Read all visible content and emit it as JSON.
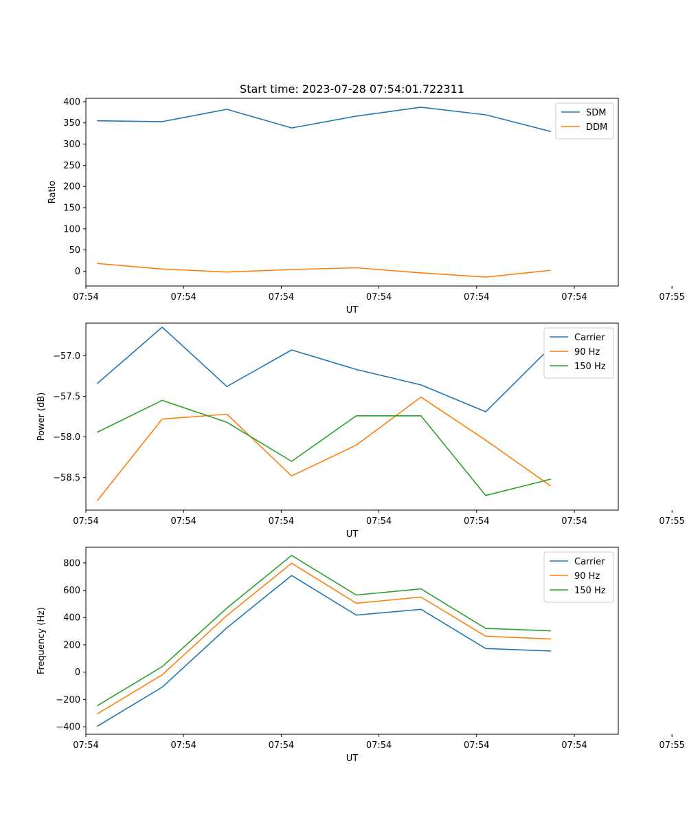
{
  "chart_data": [
    {
      "type": "line",
      "title": "Start time: 2023-07-28 07:54:01.722311",
      "xlabel": "UT",
      "ylabel": "Ratio",
      "x": [
        1,
        2,
        3,
        4,
        5,
        6,
        7,
        8
      ],
      "xlim": [
        0.82,
        9.05
      ],
      "xticks": [
        {
          "v": 0.82,
          "label": "07:54"
        },
        {
          "v": 2.33,
          "label": "07:54"
        },
        {
          "v": 3.84,
          "label": "07:54"
        },
        {
          "v": 5.35,
          "label": "07:54"
        },
        {
          "v": 6.86,
          "label": "07:54"
        },
        {
          "v": 8.37,
          "label": "07:54"
        },
        {
          "v": 9.88,
          "label": "07:55"
        }
      ],
      "ylim": [
        -35,
        408
      ],
      "yticks": [
        0,
        50,
        100,
        150,
        200,
        250,
        300,
        350,
        400
      ],
      "grid": false,
      "legend_position": "top-right",
      "series": [
        {
          "name": "SDM",
          "color": "#1f77b4",
          "values": [
            355,
            353,
            382,
            338,
            366,
            387,
            369,
            330
          ]
        },
        {
          "name": "DDM",
          "color": "#ff7f0e",
          "values": [
            18,
            5,
            -2,
            4,
            8,
            -4,
            -14,
            2
          ]
        }
      ]
    },
    {
      "type": "line",
      "title": "",
      "xlabel": "UT",
      "ylabel": "Power (dB)",
      "x": [
        1,
        2,
        3,
        4,
        5,
        6,
        7,
        8
      ],
      "xlim": [
        0.82,
        9.05
      ],
      "xticks": [
        {
          "v": 0.82,
          "label": "07:54"
        },
        {
          "v": 2.33,
          "label": "07:54"
        },
        {
          "v": 3.84,
          "label": "07:54"
        },
        {
          "v": 5.35,
          "label": "07:54"
        },
        {
          "v": 6.86,
          "label": "07:54"
        },
        {
          "v": 8.37,
          "label": "07:54"
        },
        {
          "v": 9.88,
          "label": "07:55"
        }
      ],
      "ylim": [
        -58.9,
        -56.6
      ],
      "yticks": [
        {
          "v": -57.0,
          "label": "−57.0"
        },
        {
          "v": -57.5,
          "label": "−57.5"
        },
        {
          "v": -58.0,
          "label": "−58.0"
        },
        {
          "v": -58.5,
          "label": "−58.5"
        }
      ],
      "grid": false,
      "legend_position": "top-right",
      "series": [
        {
          "name": "Carrier",
          "color": "#1f77b4",
          "values": [
            -57.34,
            -56.65,
            -57.38,
            -56.93,
            -57.17,
            -57.36,
            -57.69,
            -56.9
          ]
        },
        {
          "name": "90 Hz",
          "color": "#ff7f0e",
          "values": [
            -58.78,
            -57.78,
            -57.72,
            -58.48,
            -58.1,
            -57.51,
            -58.04,
            -58.6
          ]
        },
        {
          "name": "150 Hz",
          "color": "#2ca02c",
          "values": [
            -57.94,
            -57.55,
            -57.82,
            -58.3,
            -57.74,
            -57.74,
            -58.72,
            -58.52
          ]
        }
      ]
    },
    {
      "type": "line",
      "title": "",
      "xlabel": "UT",
      "ylabel": "Frequency (Hz)",
      "x": [
        1,
        2,
        3,
        4,
        5,
        6,
        7,
        8
      ],
      "xlim": [
        0.82,
        9.05
      ],
      "xticks": [
        {
          "v": 0.82,
          "label": "07:54"
        },
        {
          "v": 2.33,
          "label": "07:54"
        },
        {
          "v": 3.84,
          "label": "07:54"
        },
        {
          "v": 5.35,
          "label": "07:54"
        },
        {
          "v": 6.86,
          "label": "07:54"
        },
        {
          "v": 8.37,
          "label": "07:54"
        },
        {
          "v": 9.88,
          "label": "07:55"
        }
      ],
      "ylim": [
        -455,
        915
      ],
      "yticks": [
        {
          "v": -400,
          "label": "−400"
        },
        {
          "v": -200,
          "label": "−200"
        },
        {
          "v": 0,
          "label": "0"
        },
        {
          "v": 200,
          "label": "200"
        },
        {
          "v": 400,
          "label": "400"
        },
        {
          "v": 600,
          "label": "600"
        },
        {
          "v": 800,
          "label": "800"
        }
      ],
      "grid": false,
      "legend_position": "top-right",
      "series": [
        {
          "name": "Carrier",
          "color": "#1f77b4",
          "values": [
            -395,
            -110,
            325,
            708,
            418,
            460,
            173,
            155
          ]
        },
        {
          "name": "90 Hz",
          "color": "#ff7f0e",
          "values": [
            -305,
            -20,
            415,
            798,
            505,
            550,
            263,
            243
          ]
        },
        {
          "name": "150 Hz",
          "color": "#2ca02c",
          "values": [
            -245,
            40,
            470,
            855,
            565,
            610,
            320,
            303
          ]
        }
      ]
    }
  ]
}
